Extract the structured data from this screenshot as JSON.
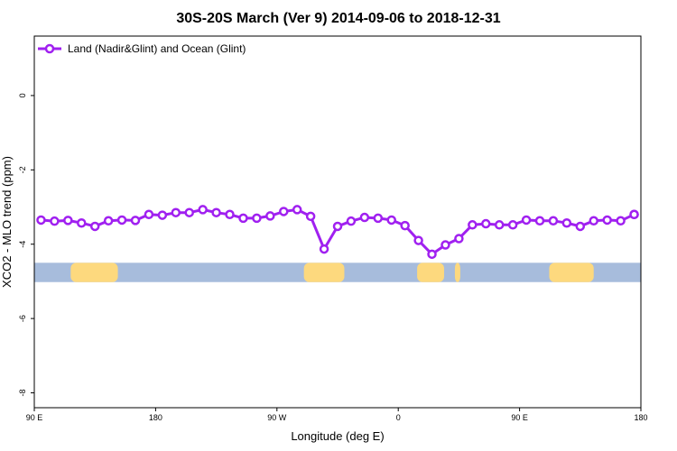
{
  "chart_data": {
    "type": "line",
    "title": "30S-20S March (Ver 9)   2014-09-06 to 2018-12-31",
    "xlabel": "Longitude (deg E)",
    "ylabel": "XCO2 - MLO trend (ppm)",
    "xlim": [
      90,
      540
    ],
    "ylim": [
      -8.4,
      1.6
    ],
    "x_ticks": [
      {
        "value": 90,
        "label": "90 E"
      },
      {
        "value": 180,
        "label": "180"
      },
      {
        "value": 270,
        "label": "90 W"
      },
      {
        "value": 360,
        "label": "0"
      },
      {
        "value": 450,
        "label": "90 E"
      },
      {
        "value": 540,
        "label": "180"
      }
    ],
    "y_ticks": [
      {
        "value": 0,
        "label": "0"
      },
      {
        "value": -2,
        "label": "-2"
      },
      {
        "value": -4,
        "label": "-4"
      },
      {
        "value": -6,
        "label": "-6"
      },
      {
        "value": -8,
        "label": "-8"
      }
    ],
    "legend": {
      "position": "top-left"
    },
    "series": [
      {
        "name": "Land (Nadir&Glint) and Ocean (Glint)",
        "color": "#a020f0",
        "x": [
          95,
          105,
          115,
          125,
          135,
          145,
          155,
          165,
          175,
          185,
          195,
          205,
          215,
          225,
          235,
          245,
          255,
          265,
          275,
          285,
          295,
          305,
          315,
          325,
          335,
          345,
          355,
          365,
          375,
          385,
          395,
          405,
          415,
          425,
          435,
          445,
          455,
          465,
          475,
          485,
          495,
          505,
          515,
          525,
          535,
          535
        ],
        "y": [
          -3.35,
          -3.38,
          -3.36,
          -3.43,
          -3.52,
          -3.37,
          -3.35,
          -3.36,
          -3.2,
          -3.22,
          -3.15,
          -3.15,
          -3.07,
          -3.15,
          -3.2,
          -3.3,
          -3.3,
          -3.24,
          -3.12,
          -3.07,
          -3.25,
          -4.13,
          -3.52,
          -3.38,
          -3.28,
          -3.3,
          -3.35,
          -3.5,
          -3.9,
          -4.27,
          -4.02,
          -3.85,
          -3.48,
          -3.45,
          -3.48,
          -3.48,
          -3.35,
          -3.37,
          -3.37,
          -3.43,
          -3.52,
          -3.37,
          -3.35,
          -3.37,
          -3.2,
          -3.2
        ]
      }
    ],
    "landmask_band": {
      "y_range": [
        -5.02,
        -4.5
      ],
      "ocean_color": "#a7bcdc",
      "land_color": "#fdd97e",
      "land_segments": [
        [
          117,
          152
        ],
        [
          290,
          320
        ],
        [
          374,
          394
        ],
        [
          402,
          406
        ],
        [
          472,
          505
        ]
      ]
    }
  }
}
